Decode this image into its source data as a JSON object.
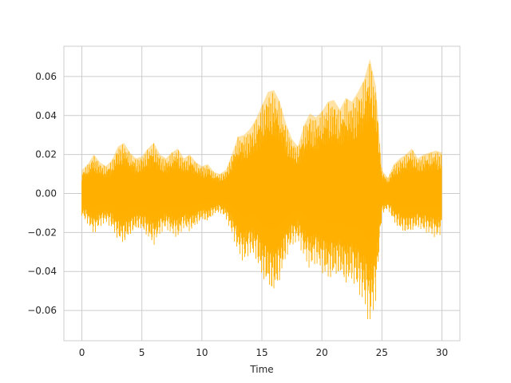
{
  "chart_data": {
    "type": "line",
    "title": "",
    "xlabel": "Time",
    "ylabel": "",
    "xlim": [
      -1.5,
      31.5
    ],
    "ylim": [
      -0.0755,
      0.0755
    ],
    "x_ticks": [
      0,
      5,
      10,
      15,
      20,
      25,
      30
    ],
    "x_tick_labels": [
      "0",
      "5",
      "10",
      "15",
      "20",
      "25",
      "30"
    ],
    "y_ticks": [
      -0.06,
      -0.04,
      -0.02,
      0.0,
      0.02,
      0.04,
      0.06
    ],
    "y_tick_labels": [
      "−0.06",
      "−0.04",
      "−0.02",
      "0.00",
      "0.02",
      "0.04",
      "0.06"
    ],
    "grid": true,
    "legend": "none",
    "colors": {
      "waveform": "#ffb000",
      "grid": "#cccccc",
      "spine": "#cccccc",
      "text": "#262626"
    },
    "series": [
      {
        "x": [
          0,
          0.5,
          1,
          1.5,
          2,
          2.5,
          3,
          3.5,
          4,
          4.5,
          5,
          5.5,
          6,
          6.5,
          7,
          7.5,
          8,
          8.5,
          9,
          9.5,
          10,
          10.5,
          11,
          11.5,
          12,
          12.5,
          13,
          13.5,
          14,
          14.5,
          15,
          15.5,
          16,
          16.5,
          17,
          17.5,
          18,
          18.5,
          19,
          19.5,
          20,
          20.5,
          21,
          21.5,
          22,
          22.5,
          23,
          23.5,
          24,
          24.5,
          25,
          25.5,
          26,
          26.5,
          27,
          27.5,
          28,
          28.5,
          29,
          29.5,
          30
        ],
        "y_max": [
          0.012,
          0.015,
          0.02,
          0.016,
          0.014,
          0.017,
          0.024,
          0.026,
          0.021,
          0.018,
          0.019,
          0.023,
          0.026,
          0.02,
          0.018,
          0.021,
          0.023,
          0.018,
          0.02,
          0.016,
          0.014,
          0.015,
          0.011,
          0.01,
          0.012,
          0.02,
          0.029,
          0.03,
          0.033,
          0.038,
          0.045,
          0.052,
          0.053,
          0.047,
          0.036,
          0.028,
          0.024,
          0.035,
          0.041,
          0.039,
          0.042,
          0.047,
          0.048,
          0.043,
          0.049,
          0.047,
          0.052,
          0.058,
          0.069,
          0.055,
          0.012,
          0.008,
          0.015,
          0.018,
          0.02,
          0.023,
          0.018,
          0.02,
          0.021,
          0.022,
          0.021
        ],
        "y_min": [
          -0.012,
          -0.016,
          -0.021,
          -0.017,
          -0.015,
          -0.018,
          -0.024,
          -0.026,
          -0.022,
          -0.019,
          -0.019,
          -0.023,
          -0.027,
          -0.021,
          -0.018,
          -0.021,
          -0.023,
          -0.018,
          -0.02,
          -0.017,
          -0.014,
          -0.015,
          -0.011,
          -0.01,
          -0.013,
          -0.021,
          -0.03,
          -0.036,
          -0.031,
          -0.034,
          -0.044,
          -0.049,
          -0.053,
          -0.046,
          -0.034,
          -0.027,
          -0.025,
          -0.033,
          -0.039,
          -0.036,
          -0.041,
          -0.045,
          -0.044,
          -0.043,
          -0.048,
          -0.046,
          -0.051,
          -0.057,
          -0.069,
          -0.055,
          -0.011,
          -0.008,
          -0.015,
          -0.019,
          -0.021,
          -0.02,
          -0.018,
          -0.02,
          -0.021,
          -0.023,
          -0.021
        ]
      }
    ]
  }
}
